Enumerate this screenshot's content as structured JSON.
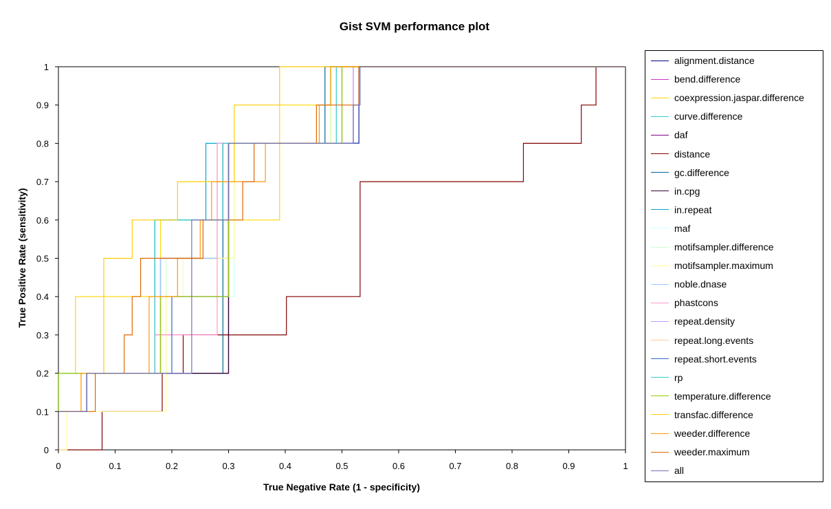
{
  "chart_data": {
    "type": "line",
    "title": "Gist SVM performance plot",
    "xlabel": "True Negative Rate (1 - specificity)",
    "ylabel": "True Positive Rate (sensitivity)",
    "xlim": [
      0,
      1
    ],
    "ylim": [
      0,
      1
    ],
    "x_ticks": [
      "0",
      "0.1",
      "0.2",
      "0.3",
      "0.4",
      "0.5",
      "0.6",
      "0.7",
      "0.8",
      "0.9",
      "1"
    ],
    "y_ticks": [
      "0",
      "0.1",
      "0.2",
      "0.3",
      "0.4",
      "0.5",
      "0.6",
      "0.7",
      "0.8",
      "0.9",
      "1"
    ],
    "grid": false,
    "legend_position": "right",
    "series": [
      {
        "name": "alignment.distance",
        "color": "#000080",
        "x": [
          0,
          0,
          0.05,
          0.05,
          0.3,
          0.3,
          0.53,
          0.53,
          1
        ],
        "y": [
          0,
          0.1,
          0.1,
          0.2,
          0.2,
          0.8,
          0.8,
          1,
          1
        ]
      },
      {
        "name": "bend.difference",
        "color": "#cc33cc",
        "x": [
          0,
          0,
          0.17,
          0.17,
          0.3,
          0.3,
          0.52,
          0.52,
          1
        ],
        "y": [
          0,
          0.2,
          0.2,
          0.3,
          0.3,
          0.8,
          0.8,
          1,
          1
        ]
      },
      {
        "name": "coexpression.jaspar.difference",
        "color": "#ffd700",
        "x": [
          0,
          0,
          0.03,
          0.03,
          0.18,
          0.18,
          0.39,
          0.39,
          0.48,
          0.48,
          1
        ],
        "y": [
          0,
          0.2,
          0.2,
          0.4,
          0.4,
          0.6,
          0.6,
          0.9,
          0.9,
          1,
          1
        ]
      },
      {
        "name": "curve.difference",
        "color": "#33cccc",
        "x": [
          0,
          0,
          0.17,
          0.17,
          0.3,
          0.3,
          0.5,
          0.5,
          1
        ],
        "y": [
          0,
          0.2,
          0.2,
          0.6,
          0.6,
          0.8,
          0.8,
          1,
          1
        ]
      },
      {
        "name": "daf",
        "color": "#800080",
        "x": [
          0,
          0,
          0.18,
          0.18,
          0.3,
          0.3,
          0.53,
          0.53,
          1
        ],
        "y": [
          0,
          0.2,
          0.2,
          0.5,
          0.5,
          0.8,
          0.8,
          1,
          1
        ]
      },
      {
        "name": "distance",
        "color": "#800000",
        "x": [
          0,
          0.077,
          0.077,
          0.183,
          0.183,
          0.205,
          0.205,
          0.22,
          0.22,
          0.402,
          0.402,
          0.532,
          0.532,
          0.82,
          0.82,
          0.922,
          0.922,
          0.948,
          0.948,
          1
        ],
        "y": [
          0,
          0,
          0.1,
          0.1,
          0.2,
          0.2,
          0.2,
          0.2,
          0.3,
          0.3,
          0.4,
          0.4,
          0.7,
          0.7,
          0.8,
          0.8,
          0.9,
          0.9,
          1,
          1
        ]
      },
      {
        "name": "gc.difference",
        "color": "#006699",
        "x": [
          0,
          0,
          0.05,
          0.05,
          0.29,
          0.29,
          0.47,
          0.47,
          1
        ],
        "y": [
          0,
          0.1,
          0.1,
          0.2,
          0.2,
          0.8,
          0.8,
          1,
          1
        ]
      },
      {
        "name": "in.cpg",
        "color": "#330033",
        "x": [
          0,
          0,
          0.05,
          0.05,
          0.3,
          0.3,
          0.53,
          0.53,
          1
        ],
        "y": [
          0,
          0.1,
          0.1,
          0.2,
          0.2,
          0.8,
          0.8,
          1,
          1
        ]
      },
      {
        "name": "in.repeat",
        "color": "#00aacc",
        "x": [
          0,
          0,
          0.17,
          0.17,
          0.26,
          0.26,
          0.48,
          0.48,
          1
        ],
        "y": [
          0,
          0.2,
          0.2,
          0.6,
          0.6,
          0.8,
          0.8,
          1,
          1
        ]
      },
      {
        "name": "maf",
        "color": "#ccffff",
        "x": [
          0,
          0,
          0.19,
          0.19,
          0.31,
          0.31,
          0.5,
          0.5,
          1
        ],
        "y": [
          0,
          0.2,
          0.2,
          0.4,
          0.4,
          0.8,
          0.8,
          1,
          1
        ]
      },
      {
        "name": "motifsampler.difference",
        "color": "#ccffcc",
        "x": [
          0,
          0,
          0.19,
          0.19,
          0.31,
          0.31,
          0.49,
          0.49,
          1
        ],
        "y": [
          0,
          0.2,
          0.2,
          0.5,
          0.5,
          0.8,
          0.8,
          1,
          1
        ]
      },
      {
        "name": "motifsampler.maximum",
        "color": "#ffff99",
        "x": [
          0,
          0.015,
          0.015,
          0.19,
          0.19,
          0.22,
          0.22,
          0.31,
          0.31,
          0.48,
          0.48,
          1
        ],
        "y": [
          0,
          0,
          0.1,
          0.1,
          0.4,
          0.4,
          0.5,
          0.5,
          0.8,
          0.8,
          1,
          1
        ]
      },
      {
        "name": "noble.dnase",
        "color": "#99ccff",
        "x": [
          0,
          0,
          0.18,
          0.18,
          0.28,
          0.28,
          0.5,
          0.5,
          1
        ],
        "y": [
          0,
          0.2,
          0.2,
          0.5,
          0.5,
          0.8,
          0.8,
          1,
          1
        ]
      },
      {
        "name": "phastcons",
        "color": "#ff99cc",
        "x": [
          0,
          0,
          0.17,
          0.17,
          0.28,
          0.28,
          0.5,
          0.5,
          1
        ],
        "y": [
          0,
          0.2,
          0.2,
          0.3,
          0.3,
          0.8,
          0.8,
          1,
          1
        ]
      },
      {
        "name": "repeat.density",
        "color": "#cc99ff",
        "x": [
          0,
          0,
          0.18,
          0.18,
          0.3,
          0.3,
          0.52,
          0.52,
          1
        ],
        "y": [
          0,
          0.2,
          0.2,
          0.4,
          0.4,
          0.8,
          0.8,
          1,
          1
        ]
      },
      {
        "name": "repeat.long.events",
        "color": "#ffcc99",
        "x": [
          0,
          0,
          0.17,
          0.17,
          0.3,
          0.3,
          0.5,
          0.5,
          1
        ],
        "y": [
          0,
          0.2,
          0.2,
          0.4,
          0.4,
          0.8,
          0.8,
          1,
          1
        ]
      },
      {
        "name": "repeat.short.events",
        "color": "#3366cc",
        "x": [
          0,
          0,
          0.05,
          0.05,
          0.2,
          0.2,
          0.3,
          0.3,
          0.53,
          0.53,
          1
        ],
        "y": [
          0,
          0.1,
          0.1,
          0.2,
          0.2,
          0.4,
          0.4,
          0.8,
          0.8,
          1,
          1
        ]
      },
      {
        "name": "rp",
        "color": "#33cccc",
        "x": [
          0,
          0,
          0.17,
          0.17,
          0.29,
          0.29,
          0.49,
          0.49,
          1
        ],
        "y": [
          0,
          0.2,
          0.2,
          0.6,
          0.6,
          0.8,
          0.8,
          1,
          1
        ]
      },
      {
        "name": "temperature.difference",
        "color": "#99cc00",
        "x": [
          0,
          0,
          0.18,
          0.18,
          0.3,
          0.3,
          0.5,
          0.5,
          1
        ],
        "y": [
          0,
          0.2,
          0.2,
          0.4,
          0.4,
          0.8,
          0.8,
          1,
          1
        ]
      },
      {
        "name": "transfac.difference",
        "color": "#ffcc00",
        "x": [
          0,
          0,
          0.04,
          0.04,
          0.08,
          0.08,
          0.13,
          0.13,
          0.21,
          0.21,
          0.31,
          0.31,
          0.39,
          0.39,
          0.48,
          0.48,
          1
        ],
        "y": [
          0,
          0.1,
          0.1,
          0.2,
          0.2,
          0.5,
          0.5,
          0.6,
          0.6,
          0.7,
          0.7,
          0.9,
          0.9,
          1,
          1,
          1,
          1
        ]
      },
      {
        "name": "weeder.difference",
        "color": "#ff9900",
        "x": [
          0,
          0,
          0.04,
          0.04,
          0.065,
          0.065,
          0.16,
          0.16,
          0.21,
          0.21,
          0.25,
          0.25,
          0.27,
          0.27,
          0.35,
          0.35,
          0.365,
          0.365,
          0.46,
          0.46,
          0.48,
          0.48,
          1
        ],
        "y": [
          0,
          0.1,
          0.1,
          0.2,
          0.2,
          0.2,
          0.2,
          0.4,
          0.4,
          0.5,
          0.5,
          0.6,
          0.6,
          0.7,
          0.7,
          0.7,
          0.7,
          0.8,
          0.8,
          0.9,
          0.9,
          1,
          1
        ]
      },
      {
        "name": "weeder.maximum",
        "color": "#e06600",
        "x": [
          0,
          0,
          0.065,
          0.065,
          0.116,
          0.116,
          0.13,
          0.13,
          0.145,
          0.145,
          0.255,
          0.255,
          0.325,
          0.325,
          0.345,
          0.345,
          0.455,
          0.455,
          0.53,
          0.53,
          1
        ],
        "y": [
          0,
          0.1,
          0.1,
          0.2,
          0.2,
          0.3,
          0.3,
          0.4,
          0.4,
          0.5,
          0.5,
          0.6,
          0.6,
          0.7,
          0.7,
          0.8,
          0.8,
          0.9,
          0.9,
          1,
          1
        ]
      },
      {
        "name": "all",
        "color": "#7070b0",
        "x": [
          0,
          0,
          0.05,
          0.05,
          0.235,
          0.235,
          0.3,
          0.3,
          0.52,
          0.52,
          0.532,
          0.532,
          1
        ],
        "y": [
          0,
          0.1,
          0.1,
          0.2,
          0.2,
          0.6,
          0.6,
          0.8,
          0.8,
          0.9,
          0.9,
          1,
          1
        ]
      }
    ]
  }
}
